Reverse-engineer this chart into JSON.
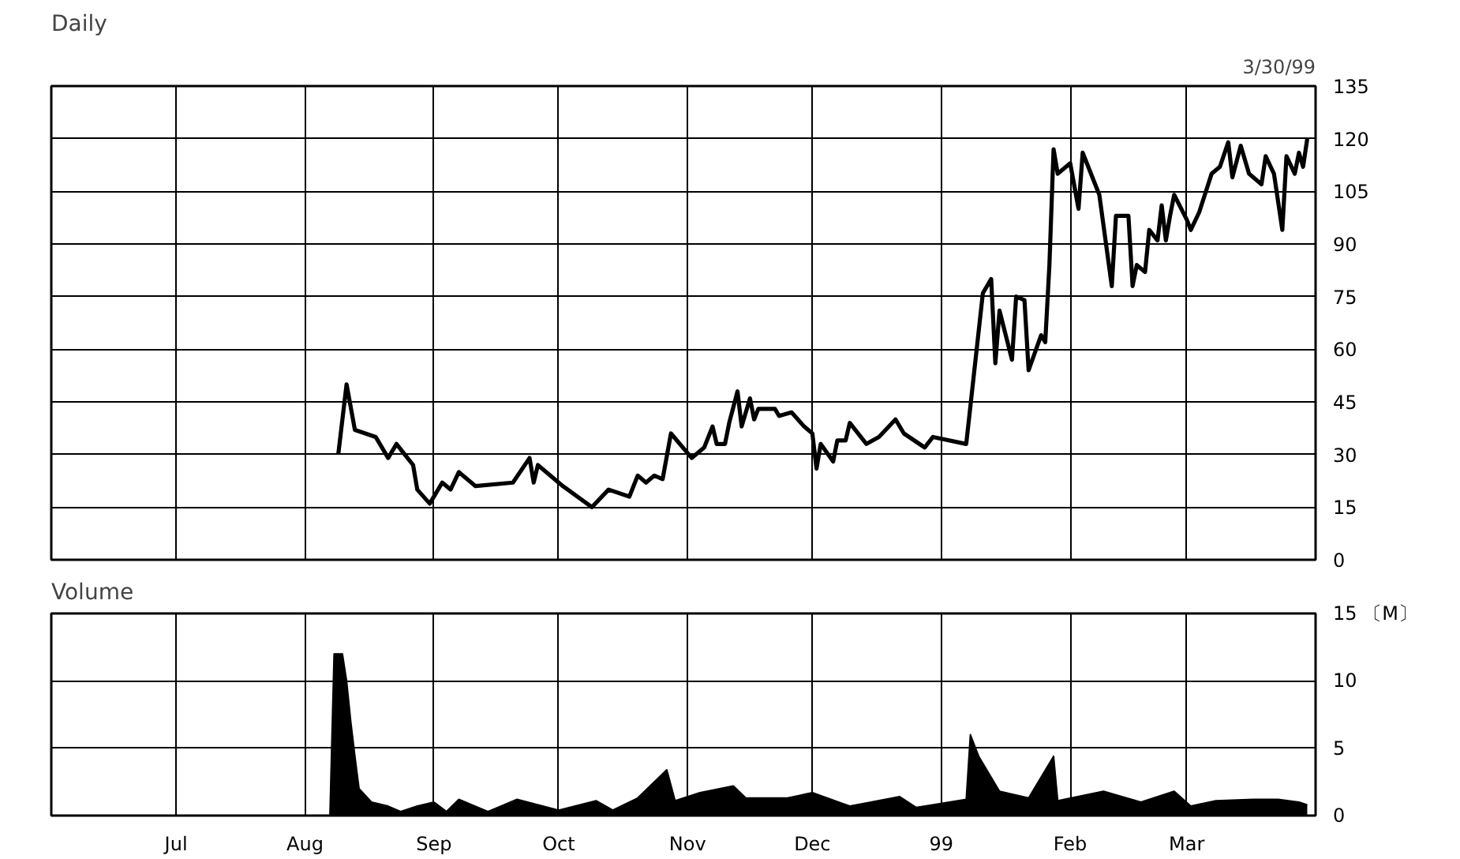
{
  "chart_data": [
    {
      "type": "line",
      "title": "Daily",
      "annotations": [
        "3/30/99"
      ],
      "x": [
        "1998-08-09",
        "1998-08-11",
        "1998-08-13",
        "1998-08-18",
        "1998-08-21",
        "1998-08-23",
        "1998-08-27",
        "1998-08-28",
        "1998-08-31",
        "1998-09-03",
        "1998-09-05",
        "1998-09-07",
        "1998-09-11",
        "1998-09-20",
        "1998-09-24",
        "1998-09-25",
        "1998-09-26",
        "1998-10-02",
        "1998-10-09",
        "1998-10-13",
        "1998-10-18",
        "1998-10-20",
        "1998-10-22",
        "1998-10-24",
        "1998-10-26",
        "1998-10-28",
        "1998-11-02",
        "1998-11-05",
        "1998-11-07",
        "1998-11-08",
        "1998-11-10",
        "1998-11-11",
        "1998-11-13",
        "1998-11-14",
        "1998-11-16",
        "1998-11-17",
        "1998-11-18",
        "1998-11-19",
        "1998-11-22",
        "1998-11-23",
        "1998-11-26",
        "1998-11-29",
        "1998-12-01",
        "1998-12-02",
        "1998-12-03",
        "1998-12-06",
        "1998-12-07",
        "1998-12-09",
        "1998-12-10",
        "1998-12-14",
        "1998-12-17",
        "1998-12-21",
        "1998-12-23",
        "1998-12-28",
        "1998-12-30",
        "1999-01-07",
        "1999-01-11",
        "1999-01-13",
        "1999-01-14",
        "1999-01-15",
        "1999-01-18",
        "1999-01-19",
        "1999-01-21",
        "1999-01-22",
        "1999-01-25",
        "1999-01-26",
        "1999-01-27",
        "1999-01-28",
        "1999-01-29",
        "1999-02-01",
        "1999-02-03",
        "1999-02-04",
        "1999-02-05",
        "1999-02-08",
        "1999-02-11",
        "1999-02-12",
        "1999-02-15",
        "1999-02-16",
        "1999-02-17",
        "1999-02-19",
        "1999-02-20",
        "1999-02-22",
        "1999-02-23",
        "1999-02-24",
        "1999-02-25",
        "1999-02-26",
        "1999-03-01",
        "1999-03-02",
        "1999-03-04",
        "1999-03-07",
        "1999-03-09",
        "1999-03-11",
        "1999-03-12",
        "1999-03-14",
        "1999-03-16",
        "1999-03-19",
        "1999-03-20",
        "1999-03-22",
        "1999-03-24",
        "1999-03-25",
        "1999-03-27",
        "1999-03-28",
        "1999-03-29",
        "1999-03-30"
      ],
      "series": [
        {
          "color": "#000000",
          "values": [
            30,
            50,
            37,
            35,
            29,
            33,
            27,
            20,
            16,
            22,
            20,
            25,
            21,
            22,
            29,
            22,
            27,
            21,
            15,
            20,
            18,
            24,
            22,
            24,
            23,
            36,
            29,
            32,
            38,
            33,
            33,
            39,
            48,
            38,
            46,
            40,
            43,
            43,
            43,
            41,
            42,
            38,
            36,
            26,
            33,
            28,
            34,
            34,
            39,
            33,
            35,
            40,
            36,
            32,
            35,
            33,
            76,
            80,
            56,
            71,
            57,
            75,
            74,
            54,
            64,
            62,
            84,
            117,
            110,
            113,
            100,
            116,
            113,
            104,
            78,
            98,
            98,
            78,
            84,
            82,
            94,
            91,
            101,
            91,
            98,
            104,
            97,
            94,
            99,
            110,
            112,
            119,
            109,
            118,
            110,
            107,
            115,
            110,
            94,
            115,
            110,
            116,
            112,
            120
          ]
        }
      ],
      "xlim": [
        "1998-06-01",
        "1999-04-01"
      ],
      "xticks": [
        {
          "value": "1998-07-01",
          "label": null
        },
        {
          "value": "1998-08-01",
          "label": null
        },
        {
          "value": "1998-09-01",
          "label": null
        },
        {
          "value": "1998-10-01",
          "label": null
        },
        {
          "value": "1998-11-01",
          "label": null
        },
        {
          "value": "1998-12-01",
          "label": null
        },
        {
          "value": "1999-01-01",
          "label": null
        },
        {
          "value": "1999-02-01",
          "label": null
        },
        {
          "value": "1999-03-01",
          "label": null
        }
      ],
      "ylim": [
        0,
        135
      ],
      "yticks": [
        0,
        15,
        30,
        45,
        60,
        75,
        90,
        105,
        120,
        135
      ],
      "grid": true,
      "tick_labels": "y"
    },
    {
      "type": "area",
      "title": "Volume",
      "x": [
        "1998-08-07",
        "1998-08-08",
        "1998-08-10",
        "1998-08-11",
        "1998-08-12",
        "1998-08-13",
        "1998-08-14",
        "1998-08-17",
        "1998-08-21",
        "1998-08-24",
        "1998-08-28",
        "1998-09-01",
        "1998-09-04",
        "1998-09-07",
        "1998-09-14",
        "1998-09-21",
        "1998-10-01",
        "1998-10-10",
        "1998-10-14",
        "1998-10-20",
        "1998-10-27",
        "1998-10-29",
        "1998-11-04",
        "1998-11-12",
        "1998-11-15",
        "1998-11-25",
        "1998-12-01",
        "1998-12-10",
        "1998-12-22",
        "1998-12-26",
        "1999-01-07",
        "1999-01-08",
        "1999-01-10",
        "1999-01-15",
        "1999-01-22",
        "1999-01-28",
        "1999-01-29",
        "1999-02-09",
        "1999-02-18",
        "1999-02-26",
        "1999-03-02",
        "1999-03-08",
        "1999-03-17",
        "1999-03-23",
        "1999-03-28",
        "1999-03-30"
      ],
      "series": [
        {
          "color": "#000000",
          "values": [
            0,
            12,
            12,
            10,
            7,
            4.4,
            2,
            1,
            0.7,
            0.3,
            0.7,
            1,
            0.3,
            1.2,
            0.3,
            1.2,
            0.4,
            1.1,
            0.4,
            1.3,
            3.4,
            1.1,
            1.7,
            2.2,
            1.3,
            1.3,
            1.7,
            0.7,
            1.4,
            0.6,
            1.2,
            6,
            4.4,
            1.8,
            1.3,
            4.4,
            1.1,
            1.8,
            1,
            1.8,
            0.7,
            1.1,
            1.2,
            1.2,
            1,
            0.8
          ]
        }
      ],
      "xlim": [
        "1998-06-01",
        "1999-04-01"
      ],
      "xticks": [
        {
          "value": "1998-07-01",
          "label": "Jul"
        },
        {
          "value": "1998-08-01",
          "label": "Aug"
        },
        {
          "value": "1998-09-01",
          "label": "Sep"
        },
        {
          "value": "1998-10-01",
          "label": "Oct"
        },
        {
          "value": "1998-11-01",
          "label": "Nov"
        },
        {
          "value": "1998-12-01",
          "label": "Dec"
        },
        {
          "value": "1999-01-01",
          "label": "99"
        },
        {
          "value": "1999-02-01",
          "label": "Feb"
        },
        {
          "value": "1999-03-01",
          "label": "Mar"
        }
      ],
      "ylim": [
        0,
        15
      ],
      "yticks": [
        0,
        5,
        10,
        {
          "value": 15,
          "label": "15 〔M〕"
        }
      ],
      "grid": true
    }
  ]
}
